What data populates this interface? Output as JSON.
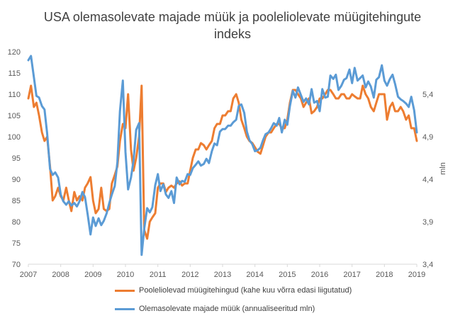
{
  "chart_data": {
    "type": "line",
    "title_line1": "USA olemasolevate majade müük ja pooleliolevate müügitehingute",
    "title_line2": "indeks",
    "ylabel_right": "mln",
    "x_ticks": [
      "2007",
      "2008",
      "2009",
      "2010",
      "2011",
      "2012",
      "2013",
      "2014",
      "2015",
      "2016",
      "2017",
      "2018",
      "2019"
    ],
    "y_left": {
      "min": 70,
      "max": 120,
      "ticks": [
        70,
        75,
        80,
        85,
        90,
        95,
        100,
        105,
        110,
        115,
        120
      ]
    },
    "y_right": {
      "min": 3.4,
      "max": 5.9,
      "tick_values": [
        3.4,
        3.9,
        4.4,
        4.9,
        5.4
      ],
      "tick_labels": [
        "3,4",
        "3,9",
        "4,4",
        "4,9",
        "5,4"
      ]
    },
    "grid": false,
    "legend_position": "bottom",
    "series": [
      {
        "name": "Pooleliolevad müügitehingud (kahe kuu võrra edasi liigutatud)",
        "color": "#ED7D31",
        "axis": "left",
        "points": [
          [
            2007.0,
            109
          ],
          [
            2007.08,
            112
          ],
          [
            2007.17,
            107
          ],
          [
            2007.25,
            108
          ],
          [
            2007.33,
            105
          ],
          [
            2007.42,
            101
          ],
          [
            2007.5,
            99
          ],
          [
            2007.58,
            100
          ],
          [
            2007.67,
            93
          ],
          [
            2007.75,
            85
          ],
          [
            2007.83,
            86
          ],
          [
            2007.92,
            88
          ],
          [
            2008.0,
            86
          ],
          [
            2008.08,
            85
          ],
          [
            2008.17,
            88
          ],
          [
            2008.25,
            85
          ],
          [
            2008.33,
            82.5
          ],
          [
            2008.42,
            87
          ],
          [
            2008.5,
            85
          ],
          [
            2008.58,
            86
          ],
          [
            2008.67,
            85
          ],
          [
            2008.75,
            88
          ],
          [
            2008.83,
            89
          ],
          [
            2008.92,
            90.5
          ],
          [
            2009.0,
            85
          ],
          [
            2009.08,
            82
          ],
          [
            2009.17,
            83
          ],
          [
            2009.25,
            88
          ],
          [
            2009.33,
            83
          ],
          [
            2009.42,
            82.5
          ],
          [
            2009.5,
            83
          ],
          [
            2009.58,
            89
          ],
          [
            2009.67,
            91
          ],
          [
            2009.75,
            93
          ],
          [
            2009.83,
            99
          ],
          [
            2009.92,
            103
          ],
          [
            2010.0,
            102
          ],
          [
            2010.08,
            110
          ],
          [
            2010.17,
            97
          ],
          [
            2010.25,
            92
          ],
          [
            2010.33,
            95
          ],
          [
            2010.42,
            100
          ],
          [
            2010.5,
            112
          ],
          [
            2010.58,
            78
          ],
          [
            2010.67,
            76
          ],
          [
            2010.75,
            80
          ],
          [
            2010.83,
            81
          ],
          [
            2010.92,
            82
          ],
          [
            2011.0,
            88
          ],
          [
            2011.08,
            89
          ],
          [
            2011.17,
            89
          ],
          [
            2011.25,
            87
          ],
          [
            2011.33,
            88
          ],
          [
            2011.42,
            88.5
          ],
          [
            2011.5,
            88
          ],
          [
            2011.58,
            89
          ],
          [
            2011.67,
            89.5
          ],
          [
            2011.75,
            88.5
          ],
          [
            2011.83,
            89
          ],
          [
            2011.92,
            89
          ],
          [
            2012.0,
            92
          ],
          [
            2012.08,
            95
          ],
          [
            2012.17,
            97
          ],
          [
            2012.25,
            97
          ],
          [
            2012.33,
            98.5
          ],
          [
            2012.42,
            98
          ],
          [
            2012.5,
            97
          ],
          [
            2012.58,
            98
          ],
          [
            2012.67,
            99
          ],
          [
            2012.75,
            102
          ],
          [
            2012.83,
            103
          ],
          [
            2012.92,
            103
          ],
          [
            2013.0,
            105
          ],
          [
            2013.08,
            105
          ],
          [
            2013.17,
            106
          ],
          [
            2013.25,
            106
          ],
          [
            2013.33,
            109
          ],
          [
            2013.42,
            110
          ],
          [
            2013.5,
            108
          ],
          [
            2013.58,
            104
          ],
          [
            2013.67,
            102
          ],
          [
            2013.75,
            100
          ],
          [
            2013.83,
            99
          ],
          [
            2013.92,
            98.5
          ],
          [
            2014.0,
            97.5
          ],
          [
            2014.08,
            96.5
          ],
          [
            2014.17,
            96
          ],
          [
            2014.25,
            98
          ],
          [
            2014.33,
            100
          ],
          [
            2014.42,
            101
          ],
          [
            2014.5,
            101
          ],
          [
            2014.58,
            102
          ],
          [
            2014.67,
            103
          ],
          [
            2014.75,
            103
          ],
          [
            2014.83,
            102
          ],
          [
            2014.92,
            102
          ],
          [
            2015.0,
            104
          ],
          [
            2015.08,
            108
          ],
          [
            2015.17,
            111
          ],
          [
            2015.25,
            111
          ],
          [
            2015.33,
            110
          ],
          [
            2015.42,
            109
          ],
          [
            2015.5,
            107
          ],
          [
            2015.58,
            108
          ],
          [
            2015.67,
            109
          ],
          [
            2015.75,
            105.5
          ],
          [
            2015.83,
            106
          ],
          [
            2015.92,
            107
          ],
          [
            2016.0,
            109
          ],
          [
            2016.08,
            109
          ],
          [
            2016.17,
            110
          ],
          [
            2016.25,
            111
          ],
          [
            2016.33,
            111
          ],
          [
            2016.42,
            110
          ],
          [
            2016.5,
            109
          ],
          [
            2016.58,
            109
          ],
          [
            2016.67,
            110
          ],
          [
            2016.75,
            110
          ],
          [
            2016.83,
            109
          ],
          [
            2016.92,
            109
          ],
          [
            2017.0,
            110
          ],
          [
            2017.08,
            109.5
          ],
          [
            2017.17,
            109
          ],
          [
            2017.25,
            109
          ],
          [
            2017.33,
            112
          ],
          [
            2017.42,
            110
          ],
          [
            2017.5,
            109
          ],
          [
            2017.58,
            107
          ],
          [
            2017.67,
            106
          ],
          [
            2017.75,
            108
          ],
          [
            2017.83,
            110
          ],
          [
            2017.92,
            110
          ],
          [
            2018.0,
            110
          ],
          [
            2018.08,
            104
          ],
          [
            2018.17,
            107
          ],
          [
            2018.25,
            108
          ],
          [
            2018.33,
            106
          ],
          [
            2018.42,
            106
          ],
          [
            2018.5,
            107
          ],
          [
            2018.58,
            106
          ],
          [
            2018.67,
            104
          ],
          [
            2018.75,
            105
          ],
          [
            2018.83,
            102
          ],
          [
            2018.92,
            102
          ],
          [
            2019.0,
            99
          ]
        ]
      },
      {
        "name": "Olemasolevate majade müük (annualiseeritud mln)",
        "color": "#5B9BD5",
        "axis": "right",
        "points": [
          [
            2007.0,
            5.8
          ],
          [
            2007.08,
            5.85
          ],
          [
            2007.17,
            5.6
          ],
          [
            2007.25,
            5.38
          ],
          [
            2007.33,
            5.36
          ],
          [
            2007.42,
            5.26
          ],
          [
            2007.5,
            5.22
          ],
          [
            2007.58,
            4.94
          ],
          [
            2007.67,
            4.52
          ],
          [
            2007.75,
            4.45
          ],
          [
            2007.83,
            4.48
          ],
          [
            2007.92,
            4.42
          ],
          [
            2008.0,
            4.22
          ],
          [
            2008.08,
            4.14
          ],
          [
            2008.17,
            4.1
          ],
          [
            2008.25,
            4.14
          ],
          [
            2008.33,
            4.09
          ],
          [
            2008.42,
            4.12
          ],
          [
            2008.5,
            4.08
          ],
          [
            2008.58,
            4.14
          ],
          [
            2008.67,
            4.25
          ],
          [
            2008.75,
            4.19
          ],
          [
            2008.83,
            3.99
          ],
          [
            2008.92,
            3.75
          ],
          [
            2009.0,
            3.95
          ],
          [
            2009.08,
            3.85
          ],
          [
            2009.17,
            3.94
          ],
          [
            2009.25,
            3.86
          ],
          [
            2009.33,
            3.91
          ],
          [
            2009.42,
            4.0
          ],
          [
            2009.5,
            4.12
          ],
          [
            2009.58,
            4.22
          ],
          [
            2009.67,
            4.32
          ],
          [
            2009.75,
            4.6
          ],
          [
            2009.83,
            5.2
          ],
          [
            2009.92,
            5.56
          ],
          [
            2010.0,
            4.72
          ],
          [
            2010.08,
            4.28
          ],
          [
            2010.17,
            4.42
          ],
          [
            2010.25,
            4.62
          ],
          [
            2010.33,
            4.98
          ],
          [
            2010.42,
            5.06
          ],
          [
            2010.5,
            3.51
          ],
          [
            2010.58,
            3.82
          ],
          [
            2010.67,
            4.06
          ],
          [
            2010.75,
            4.01
          ],
          [
            2010.83,
            4.07
          ],
          [
            2010.92,
            4.33
          ],
          [
            2011.0,
            4.46
          ],
          [
            2011.08,
            4.26
          ],
          [
            2011.17,
            4.34
          ],
          [
            2011.25,
            4.22
          ],
          [
            2011.33,
            4.18
          ],
          [
            2011.42,
            4.26
          ],
          [
            2011.5,
            4.12
          ],
          [
            2011.58,
            4.42
          ],
          [
            2011.67,
            4.34
          ],
          [
            2011.75,
            4.38
          ],
          [
            2011.83,
            4.37
          ],
          [
            2011.92,
            4.46
          ],
          [
            2012.0,
            4.45
          ],
          [
            2012.08,
            4.53
          ],
          [
            2012.17,
            4.57
          ],
          [
            2012.25,
            4.61
          ],
          [
            2012.33,
            4.56
          ],
          [
            2012.42,
            4.58
          ],
          [
            2012.5,
            4.64
          ],
          [
            2012.58,
            4.59
          ],
          [
            2012.67,
            4.73
          ],
          [
            2012.75,
            4.82
          ],
          [
            2012.83,
            4.8
          ],
          [
            2012.92,
            4.96
          ],
          [
            2013.0,
            4.99
          ],
          [
            2013.08,
            4.99
          ],
          [
            2013.17,
            5.03
          ],
          [
            2013.25,
            5.03
          ],
          [
            2013.33,
            5.07
          ],
          [
            2013.42,
            5.1
          ],
          [
            2013.5,
            5.26
          ],
          [
            2013.58,
            5.28
          ],
          [
            2013.67,
            5.18
          ],
          [
            2013.75,
            4.96
          ],
          [
            2013.83,
            4.86
          ],
          [
            2013.92,
            4.81
          ],
          [
            2014.0,
            4.73
          ],
          [
            2014.08,
            4.74
          ],
          [
            2014.17,
            4.77
          ],
          [
            2014.25,
            4.86
          ],
          [
            2014.33,
            4.93
          ],
          [
            2014.42,
            4.95
          ],
          [
            2014.5,
            5.0
          ],
          [
            2014.58,
            5.06
          ],
          [
            2014.67,
            5.03
          ],
          [
            2014.75,
            5.12
          ],
          [
            2014.83,
            4.95
          ],
          [
            2014.92,
            5.1
          ],
          [
            2015.0,
            5.04
          ],
          [
            2015.08,
            5.26
          ],
          [
            2015.17,
            5.44
          ],
          [
            2015.25,
            5.36
          ],
          [
            2015.33,
            5.48
          ],
          [
            2015.42,
            5.39
          ],
          [
            2015.5,
            5.31
          ],
          [
            2015.58,
            5.35
          ],
          [
            2015.67,
            5.28
          ],
          [
            2015.75,
            5.46
          ],
          [
            2015.83,
            5.3
          ],
          [
            2015.92,
            5.32
          ],
          [
            2016.0,
            5.2
          ],
          [
            2016.08,
            5.46
          ],
          [
            2016.17,
            5.36
          ],
          [
            2016.25,
            5.37
          ],
          [
            2016.33,
            5.62
          ],
          [
            2016.42,
            5.58
          ],
          [
            2016.5,
            5.63
          ],
          [
            2016.58,
            5.45
          ],
          [
            2016.67,
            5.5
          ],
          [
            2016.75,
            5.57
          ],
          [
            2016.83,
            5.59
          ],
          [
            2016.92,
            5.69
          ],
          [
            2017.0,
            5.53
          ],
          [
            2017.08,
            5.71
          ],
          [
            2017.17,
            5.56
          ],
          [
            2017.25,
            5.59
          ],
          [
            2017.33,
            5.62
          ],
          [
            2017.42,
            5.48
          ],
          [
            2017.5,
            5.55
          ],
          [
            2017.58,
            5.49
          ],
          [
            2017.67,
            5.36
          ],
          [
            2017.75,
            5.57
          ],
          [
            2017.83,
            5.6
          ],
          [
            2017.92,
            5.74
          ],
          [
            2018.0,
            5.56
          ],
          [
            2018.08,
            5.5
          ],
          [
            2018.17,
            5.58
          ],
          [
            2018.25,
            5.63
          ],
          [
            2018.33,
            5.52
          ],
          [
            2018.42,
            5.37
          ],
          [
            2018.5,
            5.34
          ],
          [
            2018.58,
            5.32
          ],
          [
            2018.67,
            5.29
          ],
          [
            2018.75,
            5.25
          ],
          [
            2018.83,
            5.37
          ],
          [
            2018.92,
            5.21
          ],
          [
            2019.0,
            4.95
          ]
        ]
      }
    ]
  }
}
